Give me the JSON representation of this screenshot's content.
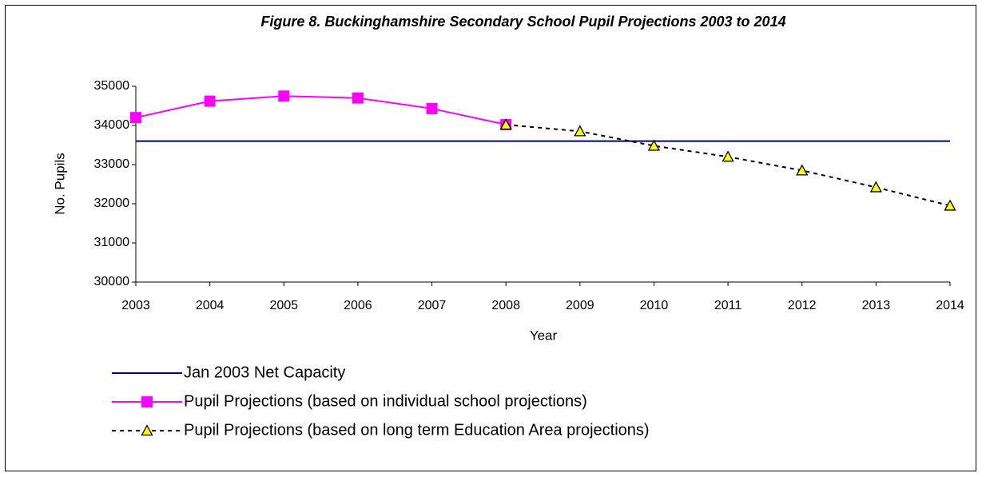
{
  "chart_data": {
    "type": "line",
    "title": "Figure 8. Buckinghamshire Secondary School Pupil Projections 2003 to 2014",
    "x_label": "Year",
    "y_label": "No. Pupils",
    "categories": [
      "2003",
      "2004",
      "2005",
      "2006",
      "2007",
      "2008",
      "2009",
      "2010",
      "2011",
      "2012",
      "2013",
      "2014"
    ],
    "series": [
      {
        "name": "Jan 2003 Net Capacity",
        "color": "#000080",
        "marker": "none",
        "dash": "solid",
        "values": [
          33600,
          33600,
          33600,
          33600,
          33600,
          33600,
          33600,
          33600,
          33600,
          33600,
          33600,
          33600
        ]
      },
      {
        "name": "Pupil Projections (based on individual school projections)",
        "color": "#ff00ff",
        "marker": "square",
        "dash": "solid",
        "values": [
          34200,
          34620,
          34750,
          34700,
          34430,
          34020,
          null,
          null,
          null,
          null,
          null,
          null
        ]
      },
      {
        "name": "Pupil Projections (based on long term Education Area projections)",
        "color": "#000000",
        "marker_color": "#ffff00",
        "marker": "triangle",
        "dash": "dashed",
        "values": [
          null,
          null,
          null,
          null,
          null,
          34020,
          33850,
          33480,
          33200,
          32850,
          32420,
          31950
        ]
      }
    ],
    "ylim": [
      30000,
      35000
    ],
    "yticks": [
      30000,
      31000,
      32000,
      33000,
      34000,
      35000
    ],
    "legend": "bottom"
  }
}
